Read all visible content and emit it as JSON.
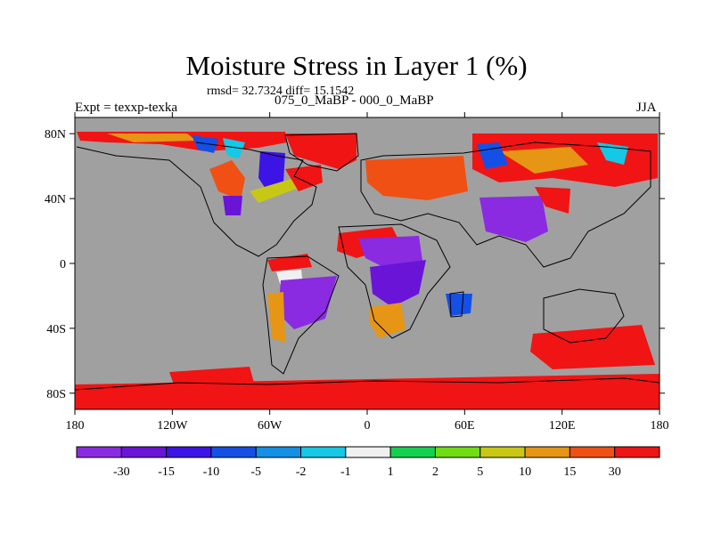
{
  "title": "Moisture Stress in Layer 1 (%)",
  "stats": "rmsd= 32.7324 diff= 15.1542",
  "left_label": "Expt = texxp-texka",
  "center_label": "075_0_MaBP - 000_0_MaBP",
  "right_label": "JJA",
  "map": {
    "ocean_color": "#a0a0a0",
    "lon_range": [
      -180,
      180
    ],
    "lat_range": [
      -90,
      90
    ],
    "x_ticks": [
      {
        "lon": -180,
        "label": "180"
      },
      {
        "lon": -120,
        "label": "120W"
      },
      {
        "lon": -60,
        "label": "60W"
      },
      {
        "lon": 0,
        "label": "0"
      },
      {
        "lon": 60,
        "label": "60E"
      },
      {
        "lon": 120,
        "label": "120E"
      },
      {
        "lon": 180,
        "label": "180"
      }
    ],
    "y_ticks": [
      {
        "lat": 80,
        "label": "80N"
      },
      {
        "lat": 40,
        "label": "40N"
      },
      {
        "lat": 0,
        "label": "0"
      },
      {
        "lat": -40,
        "label": "40S"
      },
      {
        "lat": -80,
        "label": "80S"
      }
    ]
  },
  "colorbar": {
    "colors": [
      "#8a2be2",
      "#6a14d8",
      "#3c14e6",
      "#1450e6",
      "#1490e6",
      "#14c8e6",
      "#f0f0f0",
      "#14d050",
      "#70dc14",
      "#c8c814",
      "#e69614",
      "#f05014",
      "#f01414"
    ],
    "labels": [
      "-30",
      "-15",
      "-10",
      "-5",
      "-2",
      "-1",
      "1",
      "2",
      "5",
      "10",
      "15",
      "30"
    ]
  }
}
